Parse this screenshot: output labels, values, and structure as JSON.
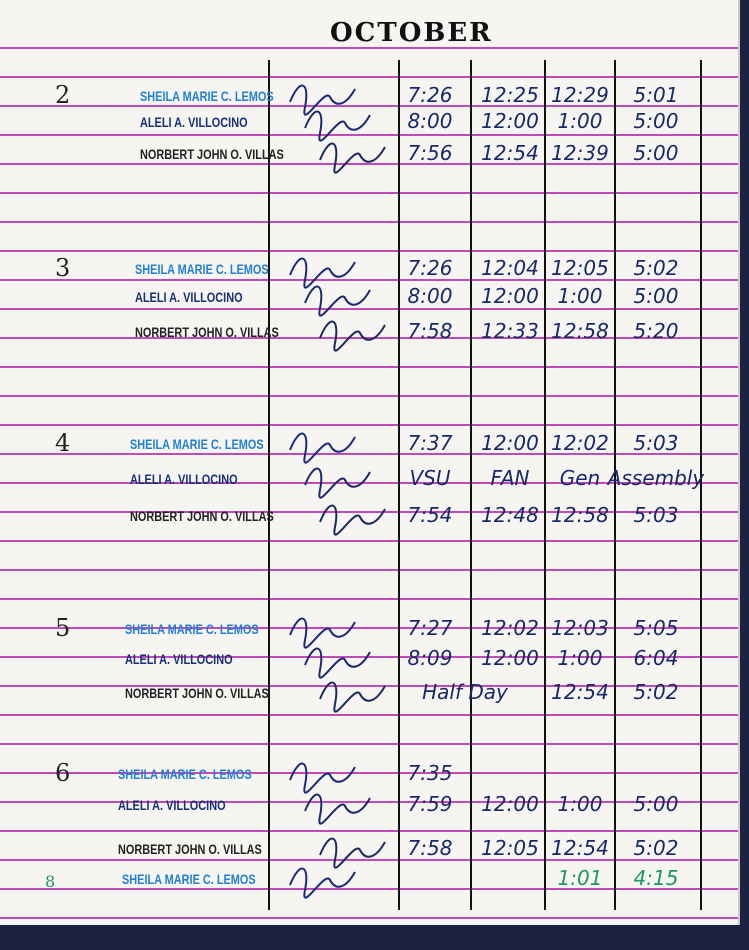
{
  "title": "OCTOBER",
  "days": [
    {
      "day": "2",
      "rows": [
        {
          "name": "SHEILA MARIE C. LEMOS",
          "style": "blue",
          "times": [
            "7:26",
            "12:25",
            "12:29",
            "5:01"
          ]
        },
        {
          "name": "ALELI A. VILLOCINO",
          "style": "navy",
          "times": [
            "8:00",
            "12:00",
            "1:00",
            "5:00"
          ]
        },
        {
          "name": "NORBERT JOHN O. VILLAS",
          "style": "black",
          "times": [
            "7:56",
            "12:54",
            "12:39",
            "5:00"
          ]
        }
      ]
    },
    {
      "day": "3",
      "rows": [
        {
          "name": "SHEILA MARIE C. LEMOS",
          "style": "blue",
          "times": [
            "7:26",
            "12:04",
            "12:05",
            "5:02"
          ]
        },
        {
          "name": "ALELI A. VILLOCINO",
          "style": "navy",
          "times": [
            "8:00",
            "12:00",
            "1:00",
            "5:00"
          ]
        },
        {
          "name": "NORBERT JOHN O. VILLAS",
          "style": "black",
          "times": [
            "7:58",
            "12:33",
            "12:58",
            "5:20"
          ]
        }
      ]
    },
    {
      "day": "4",
      "rows": [
        {
          "name": "SHEILA MARIE C. LEMOS",
          "style": "blue",
          "times": [
            "7:37",
            "12:00",
            "12:02",
            "5:03"
          ]
        },
        {
          "name": "ALELI A. VILLOCINO",
          "style": "navy",
          "times": [
            "VSU",
            "FAN",
            "Gen",
            "Assembly"
          ]
        },
        {
          "name": "NORBERT JOHN O. VILLAS",
          "style": "black",
          "times": [
            "7:54",
            "12:48",
            "12:58",
            "5:03"
          ]
        }
      ]
    },
    {
      "day": "5",
      "rows": [
        {
          "name": "SHEILA MARIE C. LEMOS",
          "style": "blue",
          "times": [
            "7:27",
            "12:02",
            "12:03",
            "5:05"
          ]
        },
        {
          "name": "ALELI A. VILLOCINO",
          "style": "navy",
          "times": [
            "8:09",
            "12:00",
            "1:00",
            "6:04"
          ]
        },
        {
          "name": "NORBERT JOHN O. VILLAS",
          "style": "black",
          "times": [
            "Half Day",
            "",
            "12:54",
            "5:02"
          ]
        }
      ]
    },
    {
      "day": "6",
      "rows": [
        {
          "name": "SHEILA MARIE C. LEMOS",
          "style": "blue",
          "times": [
            "7:35",
            "",
            "",
            ""
          ]
        },
        {
          "name": "ALELI A. VILLOCINO",
          "style": "navy",
          "times": [
            "7:59",
            "12:00",
            "1:00",
            "5:00"
          ]
        },
        {
          "name": "NORBERT JOHN O. VILLAS",
          "style": "black",
          "times": [
            "7:58",
            "12:05",
            "12:54",
            "5:02"
          ]
        }
      ]
    },
    {
      "day": "8",
      "rows": [
        {
          "name": "SHEILA MARIE C. LEMOS",
          "style": "blue",
          "times": [
            "",
            "",
            "1:01",
            "4:15"
          ]
        }
      ]
    }
  ]
}
